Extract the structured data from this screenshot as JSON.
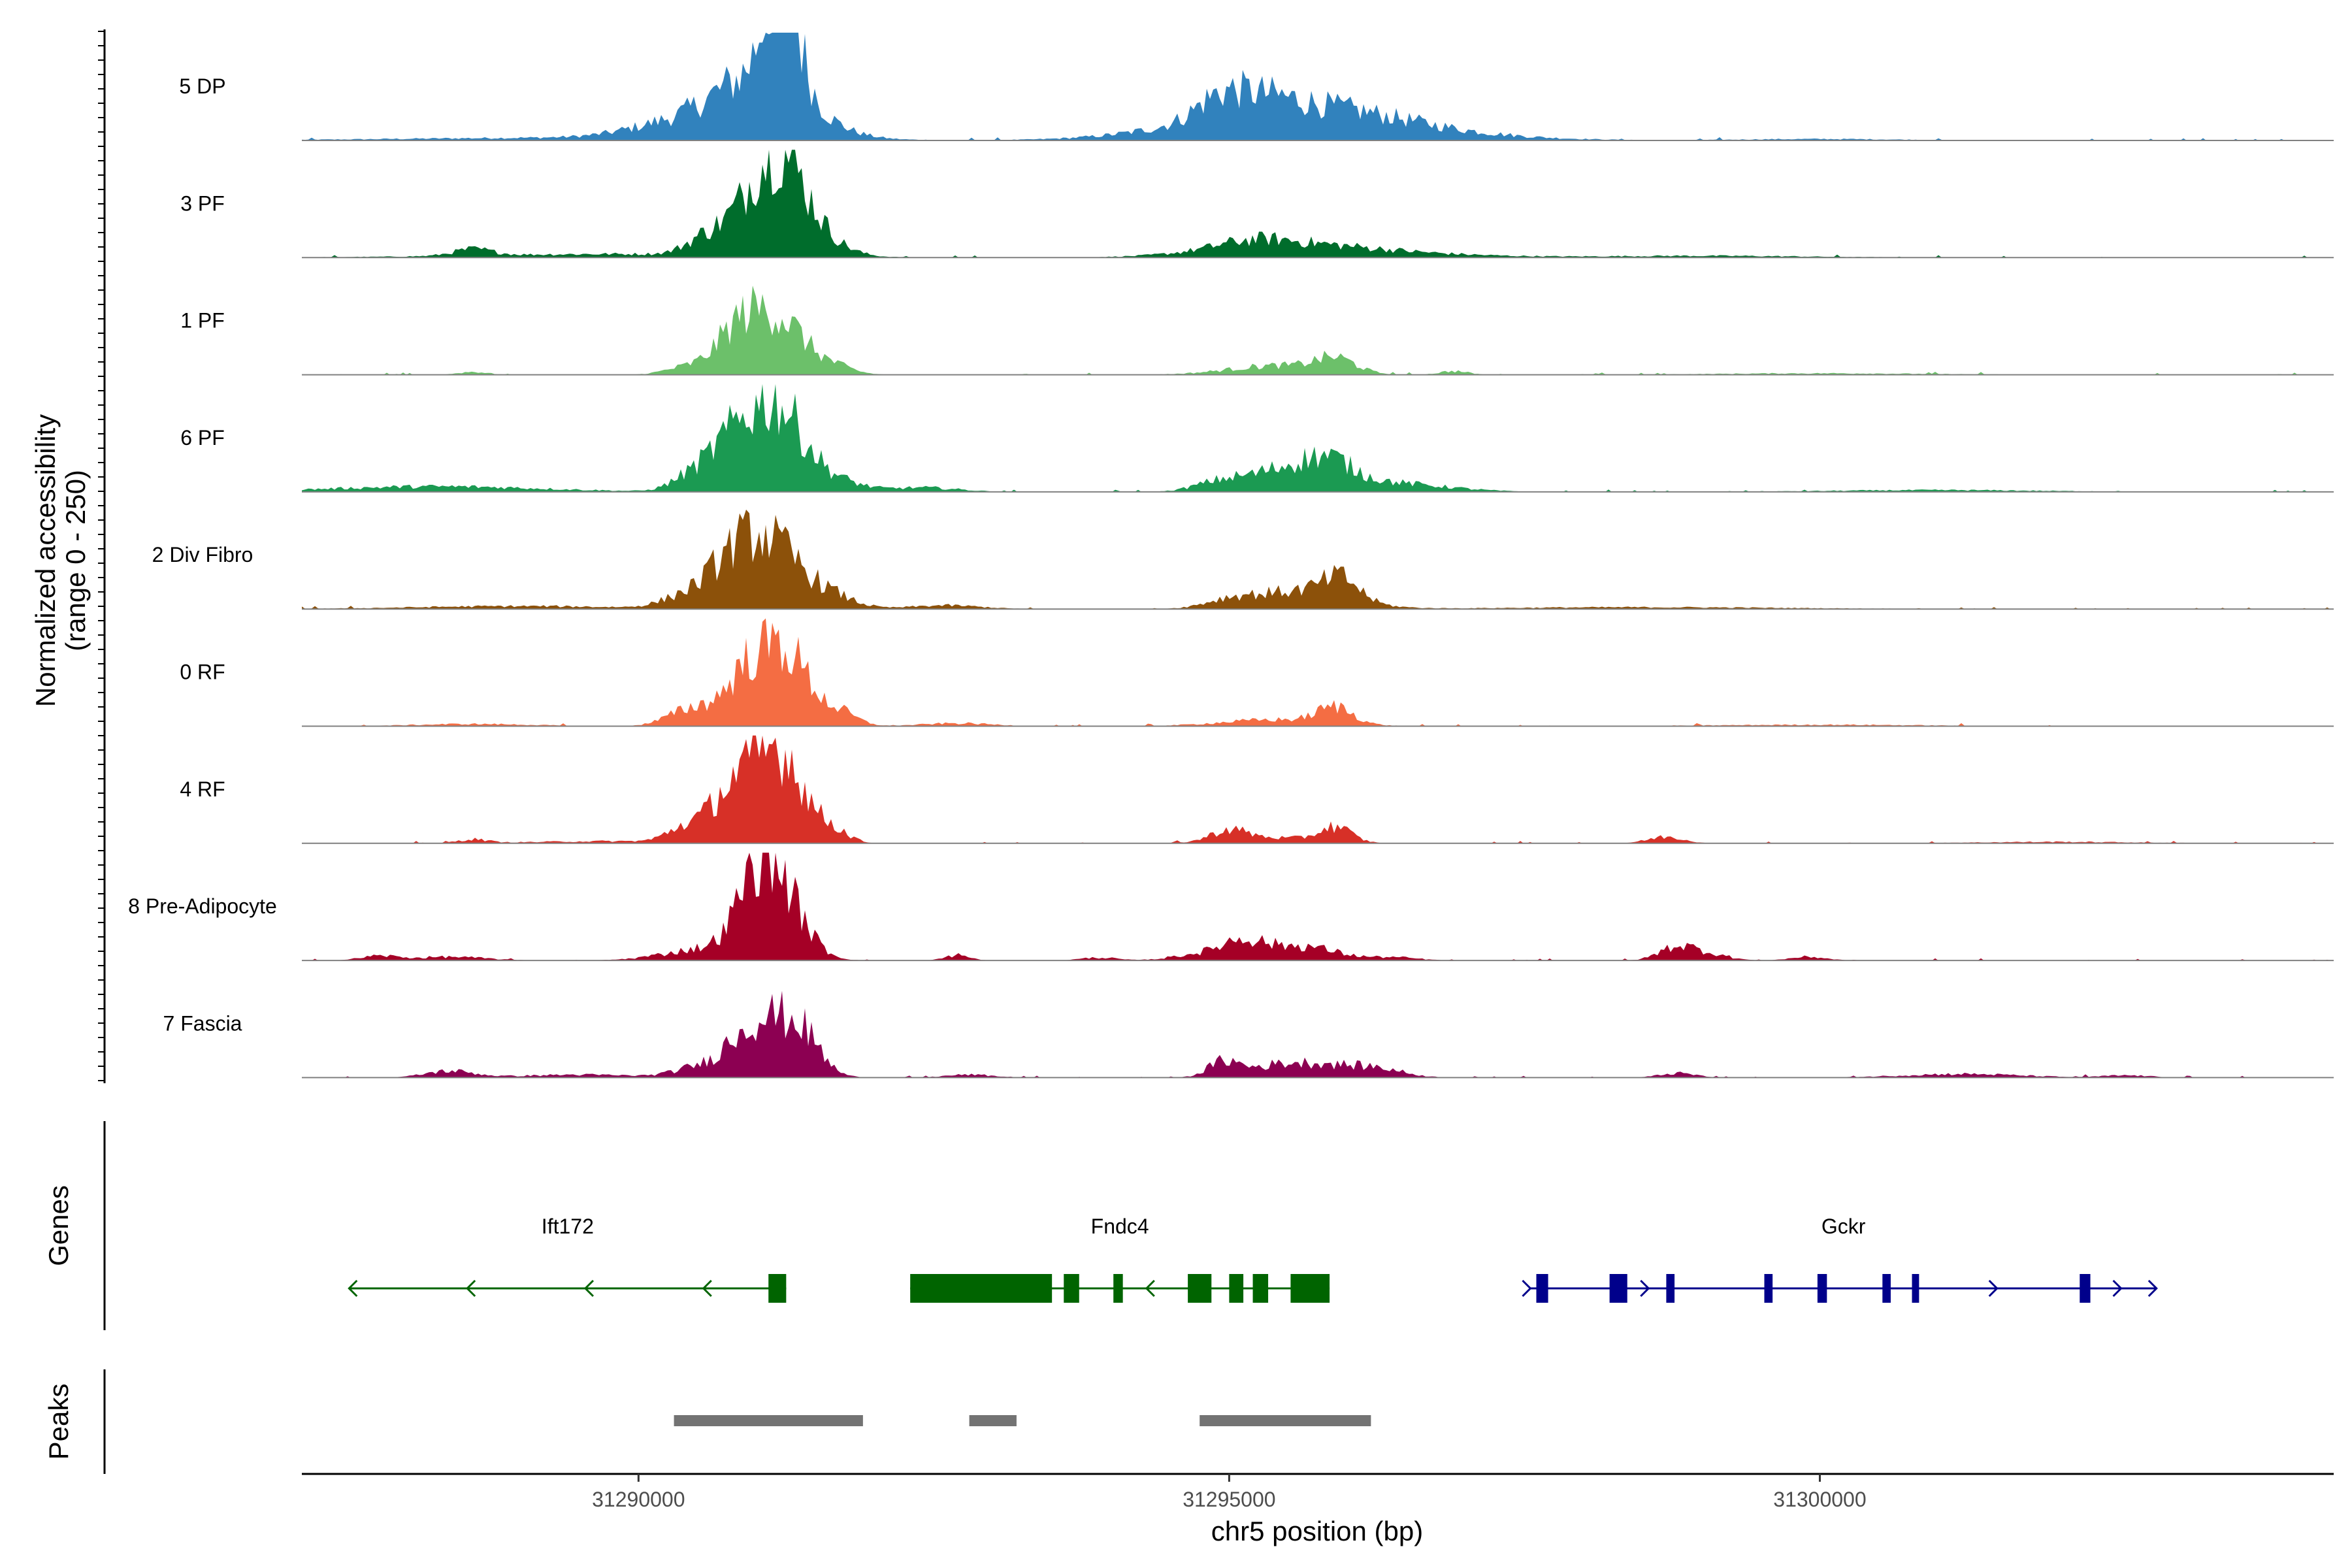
{
  "chart_data": {
    "type": "area",
    "title": "",
    "ylabel_line1": "Normalized accessibility",
    "ylabel_line2": "(range 0 - 250)",
    "ylim": [
      0,
      250
    ],
    "xlabel": "chr5 position (bp)",
    "xlim": [
      31287150,
      31304350
    ],
    "xticks": [
      31290000,
      31295000,
      31300000
    ],
    "xtick_labels": [
      "31290000",
      "31295000",
      "31300000"
    ],
    "genes_label": "Genes",
    "peaks_label": "Peaks",
    "tracks": [
      {
        "name": "5 DP",
        "color": "#3182bd",
        "profile": [
          [
            31291100,
            150,
            380
          ],
          [
            31291250,
            210,
            130
          ],
          [
            31291150,
            150,
            110
          ],
          [
            31290300,
            40,
            380
          ],
          [
            31290800,
            30,
            260
          ],
          [
            31295600,
            95,
            850
          ],
          [
            31295200,
            40,
            300
          ],
          [
            31294900,
            40,
            180
          ],
          [
            31289600,
            8,
            1500
          ],
          [
            31297000,
            5,
            800
          ],
          [
            31300000,
            4,
            700
          ]
        ]
      },
      {
        "name": "3 PF",
        "color": "#006d2c",
        "profile": [
          [
            31291050,
            165,
            260
          ],
          [
            31291250,
            150,
            200
          ],
          [
            31290550,
            35,
            160
          ],
          [
            31291600,
            30,
            200
          ],
          [
            31288600,
            18,
            160
          ],
          [
            31295500,
            35,
            650
          ],
          [
            31295200,
            18,
            300
          ],
          [
            31289800,
            10,
            1200
          ],
          [
            31296500,
            8,
            700
          ],
          [
            31299000,
            5,
            900
          ]
        ]
      },
      {
        "name": "1 PF",
        "color": "#6cc06a",
        "profile": [
          [
            31291100,
            175,
            280
          ],
          [
            31290800,
            45,
            150
          ],
          [
            31290400,
            18,
            180
          ],
          [
            31295900,
            38,
            170
          ],
          [
            31295400,
            25,
            400
          ],
          [
            31291700,
            12,
            150
          ],
          [
            31296900,
            10,
            120
          ],
          [
            31288600,
            8,
            120
          ],
          [
            31300000,
            4,
            900
          ]
        ]
      },
      {
        "name": "6 PF",
        "color": "#1b9a52",
        "profile": [
          [
            31291000,
            155,
            250
          ],
          [
            31291250,
            130,
            220
          ],
          [
            31290700,
            60,
            180
          ],
          [
            31290400,
            30,
            150
          ],
          [
            31291700,
            25,
            200
          ],
          [
            31295500,
            60,
            350
          ],
          [
            31295850,
            45,
            200
          ],
          [
            31294900,
            20,
            200
          ],
          [
            31296300,
            25,
            500
          ],
          [
            31288300,
            15,
            900
          ],
          [
            31292400,
            12,
            300
          ],
          [
            31301000,
            5,
            900
          ]
        ]
      },
      {
        "name": "2 Div Fibro",
        "color": "#8c510a",
        "profile": [
          [
            31291050,
            200,
            300
          ],
          [
            31290750,
            35,
            150
          ],
          [
            31290400,
            30,
            200
          ],
          [
            31291650,
            25,
            200
          ],
          [
            31295600,
            50,
            400
          ],
          [
            31295950,
            55,
            150
          ],
          [
            31295000,
            18,
            200
          ],
          [
            31292600,
            10,
            300
          ],
          [
            31289000,
            8,
            900
          ],
          [
            31298500,
            5,
            1200
          ]
        ]
      },
      {
        "name": "0 RF",
        "color": "#f46d43",
        "profile": [
          [
            31291050,
            150,
            250
          ],
          [
            31291300,
            110,
            180
          ],
          [
            31290450,
            45,
            200
          ],
          [
            31290900,
            40,
            150
          ],
          [
            31291700,
            35,
            150
          ],
          [
            31295900,
            45,
            150
          ],
          [
            31295400,
            18,
            450
          ],
          [
            31292700,
            8,
            300
          ],
          [
            31288600,
            6,
            500
          ],
          [
            31300000,
            4,
            900
          ]
        ]
      },
      {
        "name": "4 RF",
        "color": "#d73027",
        "profile": [
          [
            31291000,
            160,
            250
          ],
          [
            31291250,
            150,
            180
          ],
          [
            31290400,
            40,
            150
          ],
          [
            31290750,
            60,
            150
          ],
          [
            31291650,
            35,
            130
          ],
          [
            31295000,
            30,
            150
          ],
          [
            31295900,
            40,
            130
          ],
          [
            31295400,
            15,
            400
          ],
          [
            31298700,
            18,
            150
          ],
          [
            31288600,
            10,
            120
          ],
          [
            31289800,
            6,
            700
          ],
          [
            31302000,
            4,
            700
          ]
        ]
      },
      {
        "name": "8 Pre-Adipocyte",
        "color": "#a50026",
        "profile": [
          [
            31291150,
            210,
            220
          ],
          [
            31291000,
            100,
            150
          ],
          [
            31290400,
            18,
            300
          ],
          [
            31290800,
            25,
            300
          ],
          [
            31295100,
            50,
            180
          ],
          [
            31295600,
            40,
            300
          ],
          [
            31294700,
            15,
            200
          ],
          [
            31298800,
            40,
            150
          ],
          [
            31299100,
            15,
            150
          ],
          [
            31292700,
            15,
            100
          ],
          [
            31287800,
            12,
            150
          ],
          [
            31288400,
            10,
            300
          ],
          [
            31299900,
            10,
            150
          ],
          [
            31293900,
            8,
            150
          ],
          [
            31296400,
            8,
            200
          ]
        ]
      },
      {
        "name": "7 Fascia",
        "color": "#8c0052",
        "profile": [
          [
            31291100,
            155,
            250
          ],
          [
            31291400,
            65,
            150
          ],
          [
            31290500,
            25,
            200
          ],
          [
            31290850,
            30,
            150
          ],
          [
            31288400,
            18,
            200
          ],
          [
            31294950,
            40,
            130
          ],
          [
            31295800,
            35,
            350
          ],
          [
            31295350,
            20,
            250
          ],
          [
            31296300,
            15,
            200
          ],
          [
            31298800,
            12,
            150
          ],
          [
            31301200,
            10,
            500
          ],
          [
            31302600,
            6,
            200
          ],
          [
            31292800,
            8,
            200
          ],
          [
            31289500,
            8,
            500
          ]
        ]
      }
    ],
    "genes": [
      {
        "name": "Ift172",
        "strand": "-",
        "color": "#006400",
        "start": 31287550,
        "end": 31291250,
        "exons": [
          [
            31291100,
            31291250
          ]
        ],
        "arrows": [
          31287550,
          31288550,
          31289550,
          31290550
        ]
      },
      {
        "name": "Fndc4",
        "strand": "-",
        "color": "#006400",
        "start": 31292300,
        "end": 31295850,
        "exons": [
          [
            31292300,
            31293500
          ],
          [
            31293600,
            31293730
          ],
          [
            31294020,
            31294100
          ],
          [
            31294650,
            31294850
          ],
          [
            31295000,
            31295120
          ],
          [
            31295200,
            31295330
          ],
          [
            31295520,
            31295850
          ]
        ],
        "arrows": [
          31294300
        ]
      },
      {
        "name": "Gckr",
        "strand": "+",
        "color": "#00008b",
        "start": 31297550,
        "end": 31302850,
        "exons": [
          [
            31297600,
            31297700
          ],
          [
            31298220,
            31298370
          ],
          [
            31298700,
            31298770
          ],
          [
            31299530,
            31299600
          ],
          [
            31299980,
            31300060
          ],
          [
            31300530,
            31300600
          ],
          [
            31300780,
            31300840
          ],
          [
            31302200,
            31302290
          ]
        ],
        "arrows": [
          31297550,
          31298550,
          31301500,
          31302550,
          31302850
        ]
      }
    ],
    "peaks": [
      [
        31290300,
        31291900
      ],
      [
        31292800,
        31293200
      ],
      [
        31294750,
        31296200
      ]
    ]
  }
}
